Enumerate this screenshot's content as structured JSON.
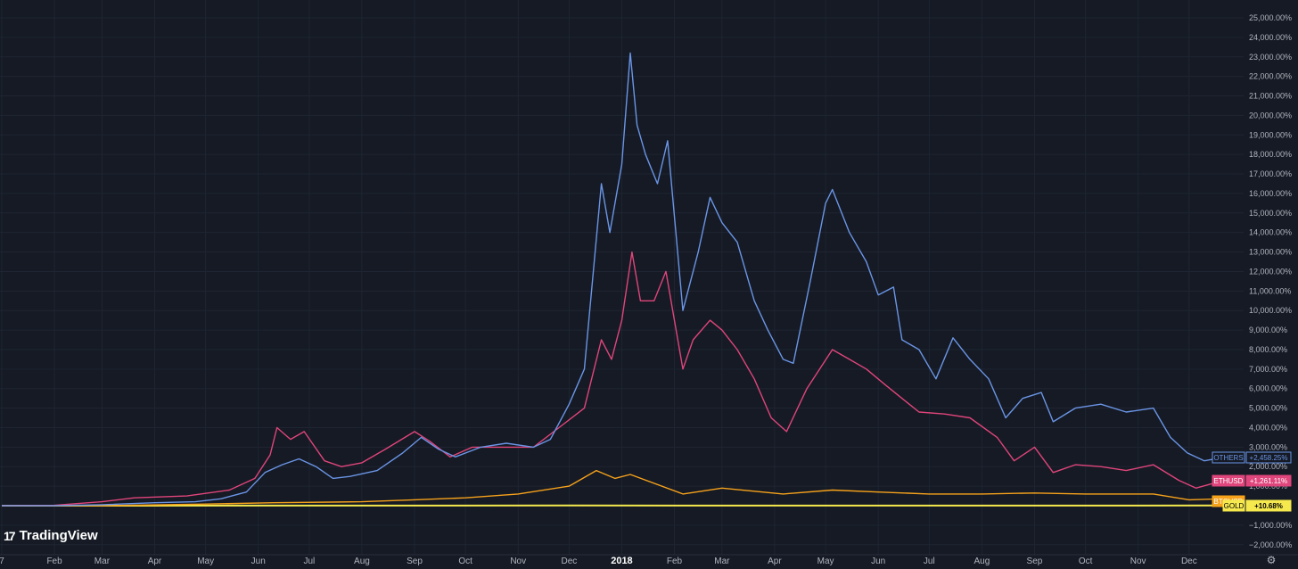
{
  "brand": {
    "logo_mark": "17",
    "name": "TradingView"
  },
  "settings_icon": "gear-icon",
  "chart_data": {
    "type": "line",
    "y_unit": "%",
    "ylim": [
      -2000,
      26000
    ],
    "y_ticks": [
      -2000,
      -1000,
      0,
      1000,
      2000,
      3000,
      4000,
      5000,
      6000,
      7000,
      8000,
      9000,
      10000,
      11000,
      12000,
      13000,
      14000,
      15000,
      16000,
      17000,
      18000,
      19000,
      20000,
      21000,
      22000,
      23000,
      24000,
      25000
    ],
    "y_tick_labels": [
      "−2,000.00%",
      "−1,000.00%",
      "",
      "1,000.00%",
      "2,000.00%",
      "3,000.00%",
      "4,000.00%",
      "5,000.00%",
      "6,000.00%",
      "7,000.00%",
      "8,000.00%",
      "9,000.00%",
      "10,000.00%",
      "11,000.00%",
      "12,000.00%",
      "13,000.00%",
      "14,000.00%",
      "15,000.00%",
      "16,000.00%",
      "17,000.00%",
      "18,000.00%",
      "19,000.00%",
      "20,000.00%",
      "21,000.00%",
      "22,000.00%",
      "23,000.00%",
      "24,000.00%",
      "25,000.00%"
    ],
    "x_range": [
      "2017-01-01",
      "2018-12-31"
    ],
    "x_ticks": [
      {
        "date": "2017-01-01",
        "label": "7"
      },
      {
        "date": "2017-02-01",
        "label": "Feb"
      },
      {
        "date": "2017-03-01",
        "label": "Mar"
      },
      {
        "date": "2017-04-01",
        "label": "Apr"
      },
      {
        "date": "2017-05-01",
        "label": "May"
      },
      {
        "date": "2017-06-01",
        "label": "Jun"
      },
      {
        "date": "2017-07-01",
        "label": "Jul"
      },
      {
        "date": "2017-08-01",
        "label": "Aug"
      },
      {
        "date": "2017-09-01",
        "label": "Sep"
      },
      {
        "date": "2017-10-01",
        "label": "Oct"
      },
      {
        "date": "2017-11-01",
        "label": "Nov"
      },
      {
        "date": "2017-12-01",
        "label": "Dec"
      },
      {
        "date": "2018-01-01",
        "label": "2018"
      },
      {
        "date": "2018-02-01",
        "label": "Feb"
      },
      {
        "date": "2018-03-01",
        "label": "Mar"
      },
      {
        "date": "2018-04-01",
        "label": "Apr"
      },
      {
        "date": "2018-05-01",
        "label": "May"
      },
      {
        "date": "2018-06-01",
        "label": "Jun"
      },
      {
        "date": "2018-07-01",
        "label": "Jul"
      },
      {
        "date": "2018-08-01",
        "label": "Aug"
      },
      {
        "date": "2018-09-01",
        "label": "Sep"
      },
      {
        "date": "2018-10-01",
        "label": "Oct"
      },
      {
        "date": "2018-11-01",
        "label": "Nov"
      },
      {
        "date": "2018-12-01",
        "label": "Dec"
      }
    ],
    "grid": true,
    "background": "#151a24",
    "series": [
      {
        "name": "OTHERS",
        "value_label": "+2,458.25%",
        "color": "#6b95e6",
        "label_bg": "#151a24",
        "points": [
          [
            "2017-01-01",
            0
          ],
          [
            "2017-02-01",
            0
          ],
          [
            "2017-03-01",
            50
          ],
          [
            "2017-04-01",
            150
          ],
          [
            "2017-04-25",
            200
          ],
          [
            "2017-05-10",
            350
          ],
          [
            "2017-05-25",
            700
          ],
          [
            "2017-06-05",
            1700
          ],
          [
            "2017-06-15",
            2100
          ],
          [
            "2017-06-25",
            2400
          ],
          [
            "2017-07-05",
            2000
          ],
          [
            "2017-07-15",
            1400
          ],
          [
            "2017-07-25",
            1500
          ],
          [
            "2017-08-10",
            1800
          ],
          [
            "2017-08-25",
            2700
          ],
          [
            "2017-09-05",
            3500
          ],
          [
            "2017-09-15",
            2900
          ],
          [
            "2017-09-25",
            2500
          ],
          [
            "2017-10-10",
            3000
          ],
          [
            "2017-10-25",
            3200
          ],
          [
            "2017-11-10",
            3000
          ],
          [
            "2017-11-20",
            3400
          ],
          [
            "2017-12-01",
            5200
          ],
          [
            "2017-12-10",
            7000
          ],
          [
            "2017-12-20",
            16500
          ],
          [
            "2017-12-25",
            14000
          ],
          [
            "2018-01-01",
            17500
          ],
          [
            "2018-01-06",
            23200
          ],
          [
            "2018-01-10",
            19500
          ],
          [
            "2018-01-15",
            18000
          ],
          [
            "2018-01-22",
            16500
          ],
          [
            "2018-01-28",
            18700
          ],
          [
            "2018-02-06",
            10000
          ],
          [
            "2018-02-15",
            13000
          ],
          [
            "2018-02-22",
            15800
          ],
          [
            "2018-03-01",
            14500
          ],
          [
            "2018-03-10",
            13500
          ],
          [
            "2018-03-20",
            10500
          ],
          [
            "2018-03-28",
            9000
          ],
          [
            "2018-04-06",
            7500
          ],
          [
            "2018-04-12",
            7300
          ],
          [
            "2018-04-22",
            11500
          ],
          [
            "2018-05-01",
            15500
          ],
          [
            "2018-05-05",
            16200
          ],
          [
            "2018-05-15",
            14000
          ],
          [
            "2018-05-25",
            12500
          ],
          [
            "2018-06-01",
            10800
          ],
          [
            "2018-06-10",
            11200
          ],
          [
            "2018-06-15",
            8500
          ],
          [
            "2018-06-25",
            8000
          ],
          [
            "2018-07-05",
            6500
          ],
          [
            "2018-07-15",
            8600
          ],
          [
            "2018-07-25",
            7500
          ],
          [
            "2018-08-05",
            6500
          ],
          [
            "2018-08-15",
            4500
          ],
          [
            "2018-08-25",
            5500
          ],
          [
            "2018-09-05",
            5800
          ],
          [
            "2018-09-12",
            4300
          ],
          [
            "2018-09-25",
            5000
          ],
          [
            "2018-10-10",
            5200
          ],
          [
            "2018-10-25",
            4800
          ],
          [
            "2018-11-10",
            5000
          ],
          [
            "2018-11-20",
            3500
          ],
          [
            "2018-11-30",
            2700
          ],
          [
            "2018-12-10",
            2300
          ],
          [
            "2018-12-20",
            2458
          ]
        ]
      },
      {
        "name": "ETHUSD",
        "value_label": "+1,261.11%",
        "color": "#e0457b",
        "label_bg": "#e0457b",
        "points": [
          [
            "2017-01-01",
            0
          ],
          [
            "2017-02-01",
            20
          ],
          [
            "2017-03-01",
            200
          ],
          [
            "2017-03-20",
            400
          ],
          [
            "2017-04-20",
            500
          ],
          [
            "2017-05-15",
            800
          ],
          [
            "2017-05-30",
            1400
          ],
          [
            "2017-06-08",
            2600
          ],
          [
            "2017-06-12",
            4000
          ],
          [
            "2017-06-20",
            3400
          ],
          [
            "2017-06-28",
            3800
          ],
          [
            "2017-07-10",
            2300
          ],
          [
            "2017-07-20",
            2000
          ],
          [
            "2017-08-01",
            2200
          ],
          [
            "2017-08-15",
            2900
          ],
          [
            "2017-09-01",
            3800
          ],
          [
            "2017-09-10",
            3300
          ],
          [
            "2017-09-22",
            2500
          ],
          [
            "2017-10-05",
            3000
          ],
          [
            "2017-10-25",
            3000
          ],
          [
            "2017-11-10",
            3000
          ],
          [
            "2017-11-25",
            4000
          ],
          [
            "2017-12-10",
            5000
          ],
          [
            "2017-12-20",
            8500
          ],
          [
            "2017-12-26",
            7500
          ],
          [
            "2018-01-01",
            9500
          ],
          [
            "2018-01-07",
            13000
          ],
          [
            "2018-01-12",
            10500
          ],
          [
            "2018-01-20",
            10500
          ],
          [
            "2018-01-27",
            12000
          ],
          [
            "2018-02-06",
            7000
          ],
          [
            "2018-02-12",
            8500
          ],
          [
            "2018-02-22",
            9500
          ],
          [
            "2018-03-01",
            9000
          ],
          [
            "2018-03-10",
            8000
          ],
          [
            "2018-03-20",
            6500
          ],
          [
            "2018-03-30",
            4500
          ],
          [
            "2018-04-08",
            3800
          ],
          [
            "2018-04-20",
            6000
          ],
          [
            "2018-05-05",
            8000
          ],
          [
            "2018-05-15",
            7500
          ],
          [
            "2018-05-25",
            7000
          ],
          [
            "2018-06-05",
            6200
          ],
          [
            "2018-06-15",
            5500
          ],
          [
            "2018-06-25",
            4800
          ],
          [
            "2018-07-10",
            4700
          ],
          [
            "2018-07-25",
            4500
          ],
          [
            "2018-08-10",
            3500
          ],
          [
            "2018-08-20",
            2300
          ],
          [
            "2018-09-01",
            3000
          ],
          [
            "2018-09-12",
            1700
          ],
          [
            "2018-09-25",
            2100
          ],
          [
            "2018-10-10",
            2000
          ],
          [
            "2018-10-25",
            1800
          ],
          [
            "2018-11-10",
            2100
          ],
          [
            "2018-11-25",
            1300
          ],
          [
            "2018-12-05",
            900
          ],
          [
            "2018-12-20",
            1261
          ]
        ]
      },
      {
        "name": "BTCUSD",
        "value_label": "",
        "color": "#f7a21b",
        "label_bg": "#f7a21b",
        "points": [
          [
            "2017-01-01",
            0
          ],
          [
            "2017-03-01",
            0
          ],
          [
            "2017-05-01",
            80
          ],
          [
            "2017-06-10",
            150
          ],
          [
            "2017-08-01",
            200
          ],
          [
            "2017-09-01",
            300
          ],
          [
            "2017-10-01",
            400
          ],
          [
            "2017-11-01",
            600
          ],
          [
            "2017-12-01",
            1000
          ],
          [
            "2017-12-17",
            1800
          ],
          [
            "2017-12-28",
            1400
          ],
          [
            "2018-01-06",
            1600
          ],
          [
            "2018-02-06",
            600
          ],
          [
            "2018-03-01",
            900
          ],
          [
            "2018-04-06",
            600
          ],
          [
            "2018-05-05",
            800
          ],
          [
            "2018-06-01",
            700
          ],
          [
            "2018-07-01",
            600
          ],
          [
            "2018-08-01",
            600
          ],
          [
            "2018-09-01",
            650
          ],
          [
            "2018-10-01",
            600
          ],
          [
            "2018-11-10",
            600
          ],
          [
            "2018-12-01",
            300
          ],
          [
            "2018-12-20",
            350
          ]
        ]
      },
      {
        "name": "GOLD",
        "value_label": "+10.68%",
        "color": "#f5e94e",
        "label_bg": "#f5e94e",
        "points": [
          [
            "2017-01-01",
            0
          ],
          [
            "2017-06-01",
            5
          ],
          [
            "2017-12-01",
            8
          ],
          [
            "2018-06-01",
            3
          ],
          [
            "2018-12-20",
            11
          ]
        ]
      }
    ]
  }
}
